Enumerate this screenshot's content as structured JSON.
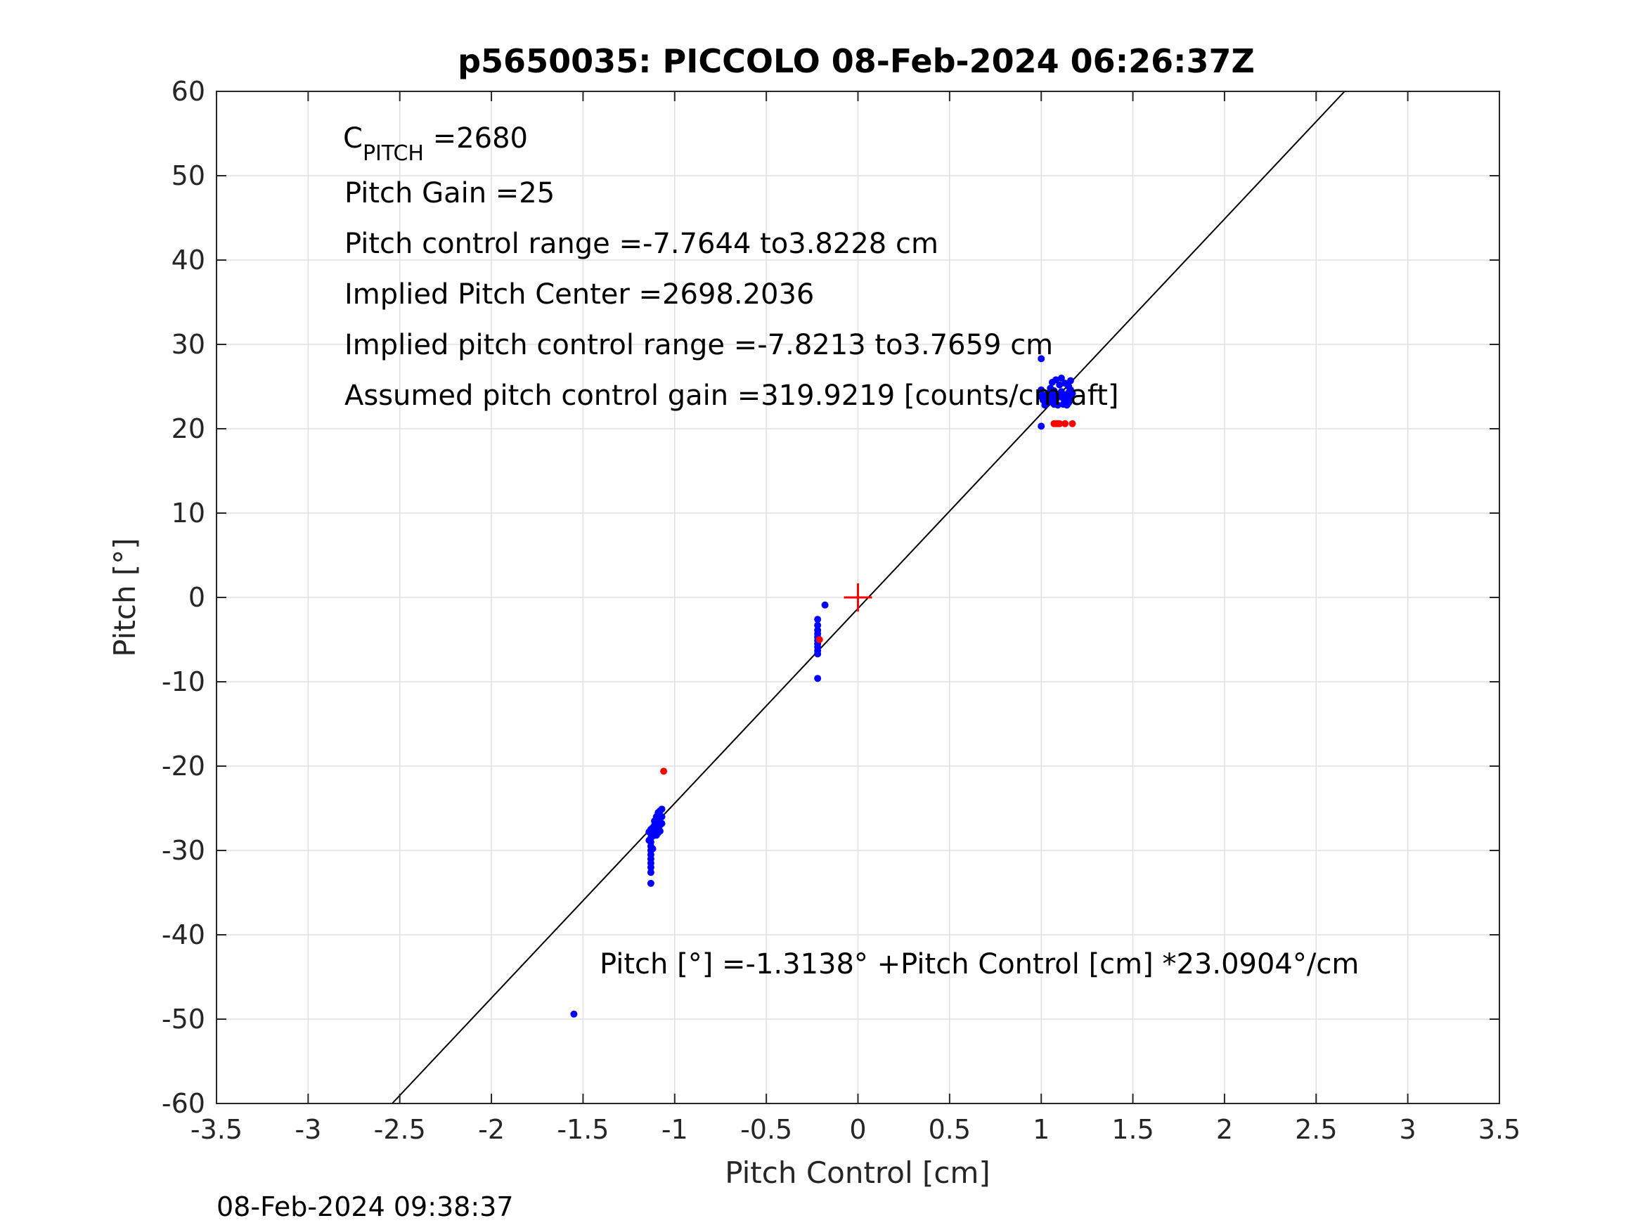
{
  "chart_data": {
    "type": "scatter",
    "title": "p5650035: PICCOLO 08-Feb-2024 06:26:37Z",
    "xlabel": "Pitch Control [cm]",
    "ylabel": "Pitch [°]",
    "xlim": [
      -3.5,
      3.5
    ],
    "ylim": [
      -60,
      60
    ],
    "xticks": [
      -3.5,
      -3,
      -2.5,
      -2,
      -1.5,
      -1,
      -0.5,
      0,
      0.5,
      1,
      1.5,
      2,
      2.5,
      3,
      3.5
    ],
    "xtick_labels": [
      "-3.5",
      "-3",
      "-2.5",
      "-2",
      "-1.5",
      "-1",
      "-0.5",
      "0",
      "0.5",
      "1",
      "1.5",
      "2",
      "2.5",
      "3",
      "3.5"
    ],
    "yticks": [
      60,
      50,
      40,
      30,
      20,
      10,
      0,
      -10,
      -20,
      -30,
      -40,
      -50,
      -60
    ],
    "ytick_labels": [
      "60",
      "50",
      "40",
      "30",
      "20",
      "10",
      "0",
      "-10",
      "-20",
      "-30",
      "-40",
      "-50",
      "-60"
    ],
    "grid": true,
    "colors": {
      "blue": "#0000ff",
      "red": "#ff0000",
      "line": "#000000",
      "grid": "#e0e0e0",
      "axis": "#262626"
    },
    "fit_line": {
      "intercept": -1.3138,
      "slope": 23.0904
    },
    "center_marker": {
      "x": 0,
      "y": 0,
      "color": "#ff0000"
    },
    "annotations": {
      "c_pitch_main": "C",
      "c_pitch_sub": "PITCH",
      "c_pitch_value": " =2680",
      "pitch_gain": "Pitch Gain =25",
      "control_range": "Pitch control range =-7.7644 to3.8228 cm",
      "implied_center": "Implied Pitch Center =2698.2036",
      "implied_range": "Implied pitch control range =-7.8213 to3.7659 cm",
      "assumed_gain": "Assumed pitch control gain =319.9219 [counts/cm aft]",
      "fit_equation": "Pitch [°] =-1.3138° +Pitch Control [cm] *23.0904°/cm"
    },
    "footer_timestamp": "08-Feb-2024 09:38:37",
    "series": [
      {
        "color": "#0000ff",
        "points": [
          [
            -1.55,
            -49.4
          ],
          [
            -1.13,
            -27.5
          ],
          [
            -1.13,
            -28.0
          ],
          [
            -1.13,
            -28.5
          ],
          [
            -1.13,
            -29.0
          ],
          [
            -1.13,
            -29.5
          ],
          [
            -1.13,
            -30.0
          ],
          [
            -1.13,
            -30.5
          ],
          [
            -1.13,
            -31.0
          ],
          [
            -1.13,
            -31.5
          ],
          [
            -1.13,
            -32.0
          ],
          [
            -1.13,
            -32.6
          ],
          [
            -1.13,
            -33.9
          ],
          [
            -1.12,
            -27.3
          ],
          [
            -1.12,
            -28.3
          ],
          [
            -1.12,
            -29.8
          ],
          [
            -1.14,
            -27.8
          ],
          [
            -1.14,
            -28.8
          ],
          [
            -1.11,
            -26.5
          ],
          [
            -1.11,
            -27.0
          ],
          [
            -1.11,
            -27.5
          ],
          [
            -1.11,
            -28.0
          ],
          [
            -1.1,
            -26.0
          ],
          [
            -1.1,
            -26.8
          ],
          [
            -1.1,
            -27.6
          ],
          [
            -1.1,
            -28.2
          ],
          [
            -1.09,
            -25.5
          ],
          [
            -1.09,
            -26.3
          ],
          [
            -1.09,
            -27.2
          ],
          [
            -1.09,
            -27.9
          ],
          [
            -1.08,
            -25.3
          ],
          [
            -1.08,
            -26.2
          ],
          [
            -1.08,
            -27.0
          ],
          [
            -1.08,
            -27.7
          ],
          [
            -1.07,
            -25.1
          ],
          [
            -1.07,
            -26.0
          ],
          [
            -1.07,
            -26.8
          ],
          [
            -0.22,
            -2.6
          ],
          [
            -0.22,
            -3.3
          ],
          [
            -0.22,
            -3.9
          ],
          [
            -0.22,
            -4.3
          ],
          [
            -0.22,
            -4.7
          ],
          [
            -0.22,
            -5.1
          ],
          [
            -0.22,
            -5.5
          ],
          [
            -0.22,
            -5.9
          ],
          [
            -0.22,
            -6.3
          ],
          [
            -0.22,
            -6.7
          ],
          [
            -0.22,
            -9.6
          ],
          [
            -0.18,
            -0.9
          ],
          [
            1.0,
            28.3
          ],
          [
            1.0,
            20.3
          ],
          [
            1.0,
            24.6
          ],
          [
            1.0,
            23.8
          ],
          [
            1.01,
            24.0
          ],
          [
            1.01,
            23.4
          ],
          [
            1.02,
            22.8
          ],
          [
            1.03,
            23.6
          ],
          [
            1.04,
            24.2
          ],
          [
            1.05,
            24.8
          ],
          [
            1.05,
            23.2
          ],
          [
            1.06,
            25.5
          ],
          [
            1.06,
            23.9
          ],
          [
            1.07,
            22.9
          ],
          [
            1.07,
            24.5
          ],
          [
            1.08,
            25.8
          ],
          [
            1.08,
            23.5
          ],
          [
            1.09,
            24.1
          ],
          [
            1.09,
            22.8
          ],
          [
            1.1,
            25.2
          ],
          [
            1.1,
            23.8
          ],
          [
            1.11,
            26.0
          ],
          [
            1.11,
            24.4
          ],
          [
            1.12,
            22.9
          ],
          [
            1.12,
            23.6
          ],
          [
            1.13,
            25.4
          ],
          [
            1.13,
            24.0
          ],
          [
            1.14,
            22.8
          ],
          [
            1.14,
            23.3
          ],
          [
            1.15,
            25.0
          ],
          [
            1.15,
            24.3
          ],
          [
            1.15,
            23.1
          ],
          [
            1.16,
            25.7
          ],
          [
            1.16,
            24.6
          ],
          [
            1.16,
            23.7
          ],
          [
            1.17,
            24.2
          ]
        ]
      },
      {
        "color": "#ff0000",
        "points": [
          [
            -1.06,
            -20.6
          ],
          [
            -0.21,
            -5.0
          ],
          [
            1.07,
            20.6
          ],
          [
            1.08,
            20.6
          ],
          [
            1.09,
            20.6
          ],
          [
            1.1,
            20.6
          ],
          [
            1.13,
            20.6
          ],
          [
            1.17,
            20.6
          ]
        ]
      }
    ]
  }
}
